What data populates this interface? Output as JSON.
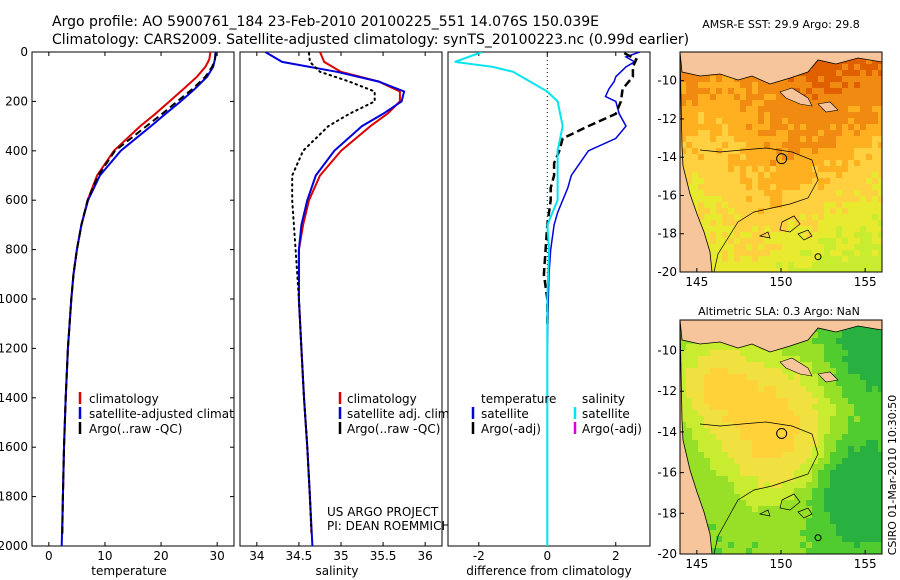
{
  "title": {
    "line1": "Argo profile: AO 5900761_184 23-Feb-2010 20100225_551 14.076S 150.039E",
    "line2": "Climatology: CARS2009. Satellite-adjusted climatology: synTS_20100223.nc (0.99d earlier)"
  },
  "side_label": "CSIRO 01-Mar-2010 10:30:50",
  "project_credit": {
    "line1": "US ARGO PROJECT",
    "line2": "PI: DEAN ROEMMICH"
  },
  "colors": {
    "climatology": "#dd0000",
    "satellite": "#0000dd",
    "argo": "#000000",
    "salinity_satellite": "#00e5ee",
    "salinity_argo": "#dd00dd",
    "land": "#f7c59c"
  },
  "chart_data": [
    {
      "id": "temperature",
      "type": "line",
      "xlabel": "temperature",
      "ylabel": "",
      "xlim": [
        -3,
        33
      ],
      "ylim": [
        2000,
        0
      ],
      "xticks": [
        0,
        10,
        20,
        30
      ],
      "yticks": [
        0,
        200,
        400,
        600,
        800,
        1000,
        1200,
        1400,
        1600,
        1800,
        2000
      ],
      "legend": [
        "climatology",
        "satellite-adjusted climatology",
        "Argo(..raw -QC)"
      ],
      "series": [
        {
          "name": "climatology",
          "depth": [
            0,
            30,
            60,
            100,
            150,
            200,
            250,
            300,
            400,
            500,
            600,
            700,
            800,
            900,
            1000,
            1200,
            1400,
            1600,
            1800,
            1950
          ],
          "values": [
            28.8,
            28.6,
            27.9,
            26.4,
            24.0,
            21.5,
            19.0,
            16.3,
            11.6,
            8.6,
            6.9,
            5.8,
            5.0,
            4.4,
            4.0,
            3.4,
            3.0,
            2.7,
            2.5,
            2.4
          ]
        },
        {
          "name": "satellite-adjusted climatology",
          "depth": [
            0,
            30,
            60,
            100,
            150,
            200,
            250,
            300,
            400,
            500,
            600,
            700,
            800,
            900,
            1000,
            1200,
            1400,
            1600,
            1800,
            2000
          ],
          "values": [
            29.7,
            29.6,
            29.3,
            28.2,
            26.0,
            23.5,
            20.8,
            18.2,
            12.8,
            9.1,
            7.0,
            5.8,
            5.0,
            4.4,
            4.0,
            3.4,
            3.0,
            2.7,
            2.5,
            2.3
          ]
        },
        {
          "name": "Argo(..raw -QC)",
          "depth": [
            5,
            30,
            60,
            100,
            150,
            200,
            250,
            300,
            400,
            500,
            600,
            700,
            800,
            900,
            1000,
            1200,
            1400,
            1600,
            1800,
            1950
          ],
          "values": [
            29.8,
            29.6,
            29.1,
            27.9,
            25.6,
            22.9,
            20.2,
            17.4,
            11.8,
            8.8,
            6.9,
            5.8,
            5.0,
            4.4,
            4.0,
            3.4,
            3.0,
            2.7,
            2.5,
            2.4
          ]
        }
      ]
    },
    {
      "id": "salinity",
      "type": "line",
      "xlabel": "salinity",
      "xlim": [
        33.8,
        36.2
      ],
      "ylim": [
        2000,
        0
      ],
      "xticks": [
        34,
        34.5,
        35,
        35.5,
        36
      ],
      "legend": [
        "climatology",
        "satellite adj. clim.",
        "Argo(..raw -QC)"
      ],
      "series": [
        {
          "name": "climatology",
          "depth": [
            0,
            40,
            80,
            120,
            160,
            200,
            250,
            300,
            400,
            500,
            600,
            700,
            800,
            1000,
            1200,
            1400,
            1600,
            1800,
            1950
          ],
          "values": [
            34.75,
            34.8,
            35.0,
            35.45,
            35.7,
            35.7,
            35.55,
            35.35,
            35.0,
            34.75,
            34.62,
            34.55,
            34.5,
            34.5,
            34.53,
            34.56,
            34.6,
            34.63,
            34.65
          ]
        },
        {
          "name": "satellite adj. clim.",
          "depth": [
            0,
            40,
            80,
            120,
            160,
            200,
            250,
            300,
            400,
            500,
            600,
            700,
            800,
            1000,
            1200,
            1400,
            1600,
            1800,
            2000
          ],
          "values": [
            34.1,
            34.3,
            34.95,
            35.45,
            35.75,
            35.72,
            35.5,
            35.25,
            34.92,
            34.7,
            34.6,
            34.53,
            34.5,
            34.5,
            34.53,
            34.56,
            34.6,
            34.63,
            34.66
          ]
        },
        {
          "name": "Argo(..raw -QC)",
          "depth": [
            5,
            40,
            80,
            120,
            160,
            200,
            250,
            300,
            400,
            500,
            600,
            700,
            800,
            1000,
            1200,
            1400,
            1600,
            1800,
            1950
          ],
          "values": [
            34.62,
            34.63,
            34.75,
            35.1,
            35.4,
            35.4,
            35.1,
            34.85,
            34.55,
            34.42,
            34.42,
            34.44,
            34.46,
            34.5,
            34.53,
            34.56,
            34.6,
            34.63,
            34.65
          ]
        }
      ]
    },
    {
      "id": "difference",
      "type": "line",
      "xlabel": "difference from climatology",
      "xlim": [
        -2.9,
        3.0
      ],
      "ylim": [
        2000,
        0
      ],
      "xticks": [
        -2,
        0,
        2
      ],
      "legend_headers": [
        "temperature",
        "salinity"
      ],
      "legend": [
        "satellite",
        "Argo(-adj)",
        "satellite",
        "Argo(-adj)"
      ],
      "series": [
        {
          "name": "temperature satellite",
          "depth": [
            0,
            20,
            40,
            60,
            80,
            100,
            120,
            150,
            180,
            200,
            250,
            300,
            350,
            400,
            450,
            500,
            550,
            600,
            650,
            700,
            800,
            900,
            1000,
            1200,
            1400,
            1600,
            1800,
            2000
          ],
          "values": [
            2.7,
            2.3,
            2.55,
            2.3,
            2.15,
            2.0,
            1.95,
            1.8,
            1.7,
            2.0,
            2.1,
            2.3,
            2.0,
            1.2,
            0.95,
            0.7,
            0.6,
            0.45,
            0.3,
            0.2,
            0.1,
            0.05,
            0.03,
            0.0,
            0.0,
            0.0,
            0.0,
            0.0
          ]
        },
        {
          "name": "temperature Argo(-adj)",
          "depth": [
            5,
            30,
            60,
            100,
            150,
            200,
            250,
            300,
            350,
            400,
            450,
            500,
            550,
            600,
            700,
            800,
            900,
            1000,
            1100
          ],
          "values": [
            2.25,
            2.6,
            2.5,
            2.5,
            2.2,
            2.15,
            2.0,
            1.2,
            0.45,
            0.35,
            0.2,
            0.2,
            0.1,
            0.1,
            0.0,
            -0.05,
            -0.1,
            0.0,
            0.0
          ]
        },
        {
          "name": "salinity satellite",
          "depth": [
            0,
            20,
            40,
            60,
            80,
            120,
            160,
            200,
            300,
            400,
            500,
            600,
            700,
            800,
            1000,
            1200,
            1400,
            1600,
            1800,
            2000
          ],
          "values": [
            -1.9,
            -2.3,
            -2.7,
            -1.6,
            -1.0,
            -0.5,
            0.0,
            0.3,
            0.45,
            0.3,
            0.3,
            0.3,
            0.0,
            0.05,
            0.0,
            0.0,
            0.0,
            0.0,
            0.0,
            0.0
          ]
        },
        {
          "name": "salinity Argo(-adj)",
          "depth": [],
          "values": []
        }
      ]
    },
    {
      "id": "sst_map",
      "type": "heatmap",
      "title": "AMSR-E SST: 29.9  Argo: 29.8",
      "xlim": [
        144,
        156
      ],
      "ylim": [
        -20,
        -8.5
      ],
      "xticks": [
        145,
        150,
        155
      ],
      "yticks": [
        -10,
        -12,
        -14,
        -16,
        -18,
        -20
      ],
      "argo_position": [
        150.039,
        -14.076
      ],
      "secondary_marker": [
        152.2,
        -19.2
      ]
    },
    {
      "id": "sla_map",
      "type": "heatmap",
      "title": "Altimetric SLA: 0.3  Argo: NaN",
      "xlim": [
        144,
        156
      ],
      "ylim": [
        -20,
        -8.5
      ],
      "xticks": [
        145,
        150,
        155
      ],
      "yticks": [
        -10,
        -12,
        -14,
        -16,
        -18,
        -20
      ],
      "argo_position": [
        150.039,
        -14.076
      ],
      "secondary_marker": [
        152.2,
        -19.2
      ]
    }
  ]
}
